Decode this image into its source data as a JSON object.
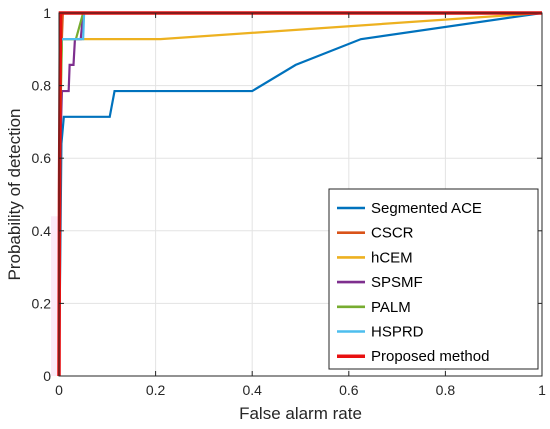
{
  "chart_data": {
    "type": "line",
    "title": "",
    "xlabel": "False alarm rate",
    "ylabel": "Probability of detection",
    "xlim": [
      0,
      1
    ],
    "ylim": [
      0,
      1
    ],
    "xticks": [
      "0",
      "0.2",
      "0.4",
      "0.6",
      "0.8",
      "1"
    ],
    "yticks": [
      "0",
      "0.2",
      "0.4",
      "0.6",
      "0.8",
      "1"
    ],
    "grid": true,
    "legend_position": "bottom-right",
    "series": [
      {
        "name": "Segmented ACE",
        "color": "#0072BD",
        "x": [
          0,
          0.005,
          0.01,
          0.105,
          0.115,
          0.4,
          0.49,
          0.625,
          1
        ],
        "y": [
          0,
          0.64,
          0.714,
          0.714,
          0.785,
          0.785,
          0.857,
          0.928,
          1
        ]
      },
      {
        "name": "CSCR",
        "color": "#D95319",
        "x": [
          0,
          0.002,
          0.004,
          0.008,
          0.012,
          1
        ],
        "y": [
          0,
          0.43,
          0.857,
          1,
          1,
          1
        ]
      },
      {
        "name": "hCEM",
        "color": "#EDB120",
        "x": [
          0,
          0.002,
          0.006,
          0.01,
          0.21,
          1
        ],
        "y": [
          0,
          0.71,
          0.928,
          0.928,
          0.928,
          1
        ]
      },
      {
        "name": "SPSMF",
        "color": "#7E2F8E",
        "x": [
          0,
          0.003,
          0.006,
          0.02,
          0.022,
          0.03,
          0.033,
          0.045,
          0.05,
          1
        ],
        "y": [
          0,
          0.642,
          0.785,
          0.785,
          0.857,
          0.857,
          0.928,
          0.928,
          1,
          1
        ]
      },
      {
        "name": "PALM",
        "color": "#77AC30",
        "x": [
          0,
          0.003,
          0.006,
          0.035,
          0.05,
          1
        ],
        "y": [
          0,
          0.714,
          0.928,
          0.928,
          1,
          1
        ]
      },
      {
        "name": "HSPRD",
        "color": "#4DBEEE",
        "x": [
          0,
          0.002,
          0.005,
          0.05,
          0.052,
          1
        ],
        "y": [
          0,
          0.857,
          0.928,
          0.928,
          1,
          1
        ]
      },
      {
        "name": "Proposed method",
        "color": "#E81010",
        "x": [
          0,
          0.001,
          0.003,
          1
        ],
        "y": [
          0,
          0.5,
          1,
          1
        ]
      }
    ]
  }
}
